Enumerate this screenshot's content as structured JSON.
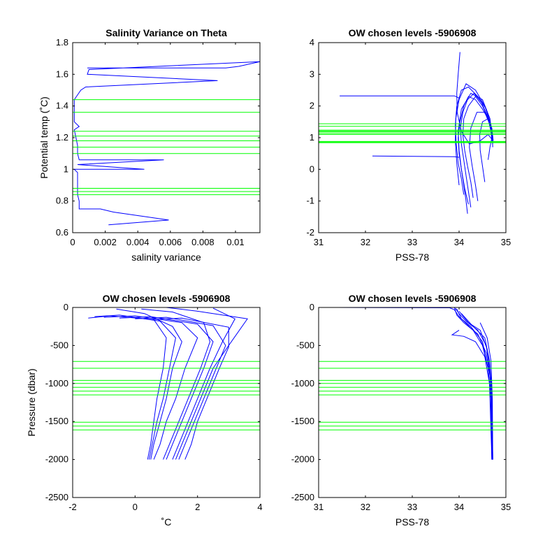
{
  "colors": {
    "profile": "#0000ff",
    "level": "#00ff00",
    "axis": "#000000",
    "background": "#ffffff"
  },
  "chart_data": [
    {
      "id": "tl",
      "type": "line",
      "title": "Salinity Variance on Theta",
      "xlabel": "salinity variance",
      "ylabel": "Potential temp (˚C)",
      "xlim": [
        0,
        0.0115
      ],
      "ylim": [
        0.6,
        1.8
      ],
      "xticks": [
        0,
        0.002,
        0.004,
        0.006,
        0.008,
        0.01
      ],
      "xtick_labels": [
        "0",
        "0.002",
        "0.004",
        "0.006",
        "0.008",
        "0.01"
      ],
      "yticks": [
        0.6,
        0.8,
        1,
        1.2,
        1.4,
        1.6,
        1.8
      ],
      "ytick_labels": [
        "0.6",
        "0.8",
        "1",
        "1.2",
        "1.4",
        "1.6",
        "1.8"
      ],
      "levels": [
        0.84,
        0.86,
        0.88,
        1.1,
        1.14,
        1.18,
        1.21,
        1.24,
        1.36,
        1.44
      ],
      "series": [
        {
          "x": [
            0.0022,
            0.0059,
            0.0025,
            0.0017,
            0.0004,
            0.0004,
            0.0003,
            0.0003,
            0.0003,
            0.0003,
            0.0001,
            0.0044,
            0.0003,
            0.0056,
            0.0004,
            0.0003,
            0.0003,
            0.0002,
            0.0001,
            0.0004,
            0.0001,
            0.0001,
            0.0001,
            0.0005,
            0.0008,
            0.0089,
            0.0009,
            0.001,
            0.0115,
            0.0102,
            0.0094,
            0.0009
          ],
          "y": [
            0.65,
            0.68,
            0.73,
            0.75,
            0.75,
            0.8,
            0.84,
            0.88,
            0.93,
            0.98,
            1.0,
            1.0,
            1.03,
            1.06,
            1.06,
            1.1,
            1.15,
            1.2,
            1.25,
            1.27,
            1.3,
            1.4,
            1.44,
            1.5,
            1.52,
            1.56,
            1.6,
            1.63,
            1.68,
            1.65,
            1.64,
            1.64
          ]
        }
      ]
    },
    {
      "id": "tr",
      "type": "line",
      "title": "OW chosen levels -5906908",
      "xlabel": "PSS-78",
      "ylabel": "",
      "xlim": [
        31,
        35
      ],
      "ylim": [
        -2,
        4
      ],
      "xticks": [
        31,
        32,
        33,
        34,
        35
      ],
      "xtick_labels": [
        "31",
        "32",
        "33",
        "34",
        "35"
      ],
      "yticks": [
        -2,
        -1,
        0,
        1,
        2,
        3,
        4
      ],
      "ytick_labels": [
        "-2",
        "-1",
        "0",
        "1",
        "2",
        "3",
        "4"
      ],
      "levels": [
        0.84,
        0.86,
        0.88,
        1.1,
        1.14,
        1.18,
        1.21,
        1.24,
        1.36,
        1.44
      ],
      "series": [
        {
          "x": [
            34.18,
            34.15,
            34.1,
            34.05,
            34.0,
            33.98,
            34.02,
            34.1,
            34.2,
            34.35,
            34.5,
            34.62,
            34.68,
            34.7
          ],
          "y": [
            -1.4,
            -1.0,
            -0.5,
            0.0,
            0.5,
            1.0,
            1.5,
            2.0,
            2.3,
            2.2,
            1.9,
            1.6,
            1.2,
            0.9
          ]
        },
        {
          "x": [
            34.25,
            34.2,
            34.15,
            34.1,
            34.05,
            34.03,
            34.08,
            34.18,
            34.32,
            34.48,
            34.6,
            34.68,
            34.72
          ],
          "y": [
            -1.2,
            -0.7,
            -0.2,
            0.3,
            0.8,
            1.3,
            1.8,
            2.2,
            2.4,
            2.1,
            1.7,
            1.3,
            0.8
          ]
        },
        {
          "x": [
            34.3,
            34.25,
            34.18,
            34.12,
            34.08,
            34.1,
            34.2,
            34.35,
            34.5,
            34.62,
            34.7,
            34.72
          ],
          "y": [
            -0.9,
            -0.4,
            0.1,
            0.6,
            1.1,
            1.6,
            2.0,
            2.3,
            2.0,
            1.6,
            1.2,
            0.7
          ]
        },
        {
          "x": [
            34.1,
            34.05,
            33.98,
            33.94,
            33.92,
            33.95,
            34.05,
            34.2,
            34.4,
            34.58,
            34.68,
            34.71
          ],
          "y": [
            -0.8,
            -0.3,
            0.2,
            0.8,
            1.4,
            2.0,
            2.5,
            2.6,
            2.3,
            1.9,
            1.4,
            1.0
          ]
        },
        {
          "x": [
            34.0,
            33.95,
            33.92,
            33.93,
            34.0,
            34.15,
            34.35,
            34.55,
            34.68,
            34.72
          ],
          "y": [
            -0.5,
            0.2,
            0.9,
            1.6,
            2.2,
            2.7,
            2.5,
            2.0,
            1.4,
            0.9
          ]
        },
        {
          "x": [
            34.02,
            33.98,
            33.95,
            33.96,
            34.05,
            34.22,
            34.45,
            34.62,
            34.7
          ],
          "y": [
            3.7,
            3.0,
            2.4,
            1.8,
            1.2,
            0.8,
            0.9,
            1.1,
            0.95
          ]
        },
        {
          "x": [
            34.4,
            34.35,
            34.28,
            34.22,
            34.25,
            34.38,
            34.55,
            34.66,
            34.71
          ],
          "y": [
            -1.0,
            -0.5,
            0.1,
            0.7,
            1.3,
            1.8,
            1.8,
            1.4,
            0.9
          ]
        },
        {
          "x": [
            34.55,
            34.5,
            34.45,
            34.44,
            34.5,
            34.62,
            34.7,
            34.73
          ],
          "y": [
            -0.4,
            0.1,
            0.6,
            1.1,
            1.5,
            1.6,
            1.3,
            0.9
          ]
        },
        {
          "x": [
            34.2,
            34.12,
            34.05,
            34.0,
            33.98,
            34.05,
            34.25,
            34.5,
            34.66,
            34.71
          ],
          "y": [
            -1.1,
            -0.6,
            0.0,
            0.6,
            1.2,
            1.9,
            2.4,
            2.2,
            1.6,
            1.0
          ]
        },
        {
          "x": [
            31.45,
            33.9,
            34.0
          ],
          "y": [
            2.32,
            2.32,
            2.25
          ]
        },
        {
          "x": [
            32.15,
            33.9,
            34.0
          ],
          "y": [
            0.42,
            0.4,
            0.38
          ]
        },
        {
          "x": [
            34.62,
            34.64,
            34.66,
            34.68,
            34.7
          ],
          "y": [
            0.3,
            0.5,
            0.7,
            0.85,
            1.0
          ]
        }
      ]
    },
    {
      "id": "bl",
      "type": "line",
      "title": "OW chosen levels -5906908",
      "xlabel": "˚C",
      "ylabel": "Pressure (dbar)",
      "xlim": [
        -2,
        4
      ],
      "ylim": [
        -2500,
        0
      ],
      "xticks": [
        -2,
        0,
        2,
        4
      ],
      "xtick_labels": [
        "-2",
        "0",
        "2",
        "4"
      ],
      "yticks": [
        -2500,
        -2000,
        -1500,
        -1000,
        -500,
        0
      ],
      "ytick_labels": [
        "-2500",
        "-2000",
        "-1500",
        "-1000",
        "-500",
        "0"
      ],
      "levels": [
        -710,
        -800,
        -960,
        -1000,
        -1050,
        -1100,
        -1150,
        -1510,
        -1560,
        -1610
      ],
      "series": [
        {
          "x": [
            -1.3,
            -0.5,
            0.8,
            1.3,
            1.1,
            0.9,
            0.7,
            0.55,
            0.45
          ],
          "y": [
            -120,
            -100,
            -180,
            -400,
            -800,
            -1200,
            -1500,
            -1800,
            -2000
          ]
        },
        {
          "x": [
            -1.0,
            0.0,
            1.5,
            2.0,
            1.6,
            1.3,
            1.0,
            0.8,
            0.6
          ],
          "y": [
            -130,
            -110,
            -200,
            -400,
            -800,
            -1200,
            -1500,
            -1800,
            -2000
          ]
        },
        {
          "x": [
            -0.5,
            0.5,
            2.0,
            2.5,
            2.2,
            1.8,
            1.5,
            1.2,
            1.0
          ],
          "y": [
            -140,
            -120,
            -220,
            -450,
            -800,
            -1200,
            -1500,
            -1800,
            -2000
          ]
        },
        {
          "x": [
            0.0,
            1.0,
            2.5,
            2.9,
            2.6,
            2.2,
            1.9,
            1.6,
            1.4
          ],
          "y": [
            -150,
            -130,
            -240,
            -500,
            -800,
            -1200,
            -1500,
            -1800,
            -2000
          ]
        },
        {
          "x": [
            0.5,
            1.5,
            3.0,
            3.0,
            2.7,
            2.3,
            2.0,
            1.8,
            1.6
          ],
          "y": [
            -160,
            -140,
            -260,
            -520,
            -800,
            -1200,
            -1500,
            -1800,
            -2000
          ]
        },
        {
          "x": [
            1.0,
            2.0,
            3.6,
            3.0,
            2.5,
            2.1,
            1.8,
            1.5,
            1.3
          ],
          "y": [
            0,
            -50,
            -150,
            -500,
            -800,
            -1200,
            -1500,
            -1800,
            -2000
          ]
        },
        {
          "x": [
            -0.6,
            0.3,
            1.2,
            1.5,
            1.2,
            1.0,
            0.8,
            0.6,
            0.5
          ],
          "y": [
            -20,
            -80,
            -250,
            -450,
            -800,
            -1200,
            -1500,
            -1800,
            -2000
          ]
        },
        {
          "x": [
            -1.5,
            -0.8,
            0.6,
            1.0,
            0.9,
            0.7,
            0.6,
            0.5,
            0.4
          ],
          "y": [
            -140,
            -110,
            -160,
            -400,
            -800,
            -1200,
            -1500,
            -1800,
            -2000
          ]
        },
        {
          "x": [
            0.2,
            1.2,
            2.2,
            2.4,
            2.1,
            1.7,
            1.4,
            1.1,
            0.9
          ],
          "y": [
            -20,
            -60,
            -200,
            -450,
            -800,
            -1200,
            -1500,
            -1800,
            -2000
          ]
        },
        {
          "x": [
            2.5,
            3.2,
            2.8,
            2.4,
            2.0,
            1.7,
            1.4,
            1.2
          ],
          "y": [
            -10,
            -150,
            -450,
            -800,
            -1200,
            -1500,
            -1800,
            -2000
          ]
        }
      ]
    },
    {
      "id": "br",
      "type": "line",
      "title": "OW chosen levels -5906908",
      "xlabel": "PSS-78",
      "ylabel": "",
      "xlim": [
        31,
        35
      ],
      "ylim": [
        -2500,
        0
      ],
      "xticks": [
        31,
        32,
        33,
        34,
        35
      ],
      "xtick_labels": [
        "31",
        "32",
        "33",
        "34",
        "35"
      ],
      "yticks": [
        -2500,
        -2000,
        -1500,
        -1000,
        -500,
        0
      ],
      "ytick_labels": [
        "-2500",
        "-2000",
        "-1500",
        "-1000",
        "-500",
        "0"
      ],
      "levels": [
        -710,
        -800,
        -960,
        -1000,
        -1050,
        -1100,
        -1150,
        -1510,
        -1560,
        -1610
      ],
      "series": [
        {
          "x": [
            31.4,
            33.8,
            33.9,
            34.0,
            34.3,
            34.5,
            34.62,
            34.68,
            34.7
          ],
          "y": [
            0,
            -5,
            -30,
            -120,
            -300,
            -500,
            -800,
            -1200,
            -2000
          ]
        },
        {
          "x": [
            33.9,
            33.95,
            34.1,
            34.4,
            34.58,
            34.66,
            34.7,
            34.71
          ],
          "y": [
            0,
            -100,
            -200,
            -350,
            -600,
            -900,
            -1300,
            -2000
          ]
        },
        {
          "x": [
            33.95,
            34.05,
            34.25,
            34.5,
            34.62,
            34.68,
            34.71
          ],
          "y": [
            -20,
            -150,
            -250,
            -450,
            -800,
            -1200,
            -2000
          ]
        },
        {
          "x": [
            34.0,
            34.2,
            34.45,
            34.6,
            34.67,
            34.7,
            34.72
          ],
          "y": [
            -50,
            -200,
            -300,
            -550,
            -900,
            -1300,
            -2000
          ]
        },
        {
          "x": [
            34.05,
            34.3,
            34.55,
            34.65,
            34.7,
            34.72
          ],
          "y": [
            -80,
            -250,
            -400,
            -700,
            -1100,
            -2000
          ]
        },
        {
          "x": [
            33.92,
            34.0,
            34.15,
            34.4,
            34.58,
            34.67,
            34.7
          ],
          "y": [
            -10,
            -80,
            -180,
            -300,
            -500,
            -900,
            -2000
          ]
        },
        {
          "x": [
            34.0,
            33.85,
            34.1,
            34.35,
            34.55,
            34.65,
            34.7
          ],
          "y": [
            -300,
            -360,
            -380,
            -450,
            -650,
            -1000,
            -2000
          ]
        },
        {
          "x": [
            34.45,
            34.6,
            34.68,
            34.71,
            34.72
          ],
          "y": [
            -200,
            -400,
            -700,
            -1200,
            -2000
          ]
        }
      ]
    }
  ]
}
